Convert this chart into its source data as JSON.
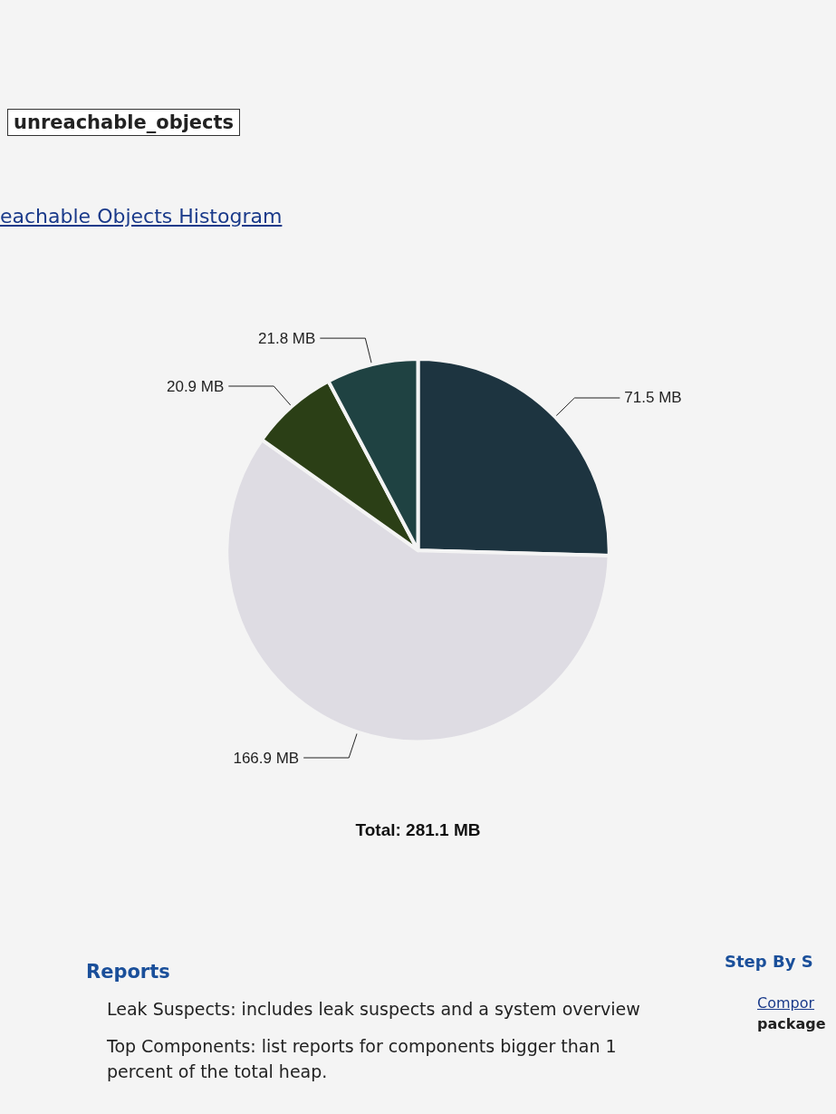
{
  "chart_data": {
    "type": "pie",
    "title": "Total: 281.1 MB",
    "categories": [
      null,
      null,
      null,
      null
    ],
    "values": [
      71.5,
      166.9,
      20.9,
      21.8
    ],
    "value_labels": [
      "71.5 MB",
      "166.9 MB",
      "20.9 MB",
      "21.8 MB"
    ],
    "colors": [
      "#1d3440",
      "#dedce3",
      "#2b3f16",
      "#1f4242"
    ],
    "annotations": [
      "unreachable_objects",
      "eachable Objects Histogram",
      "Reports",
      "Leak Suspects: includes leak suspects and a system overview",
      "Top Components: list reports for components bigger than 1 percent of the total heap.",
      "Step By S",
      "Compor",
      "package"
    ]
  }
}
